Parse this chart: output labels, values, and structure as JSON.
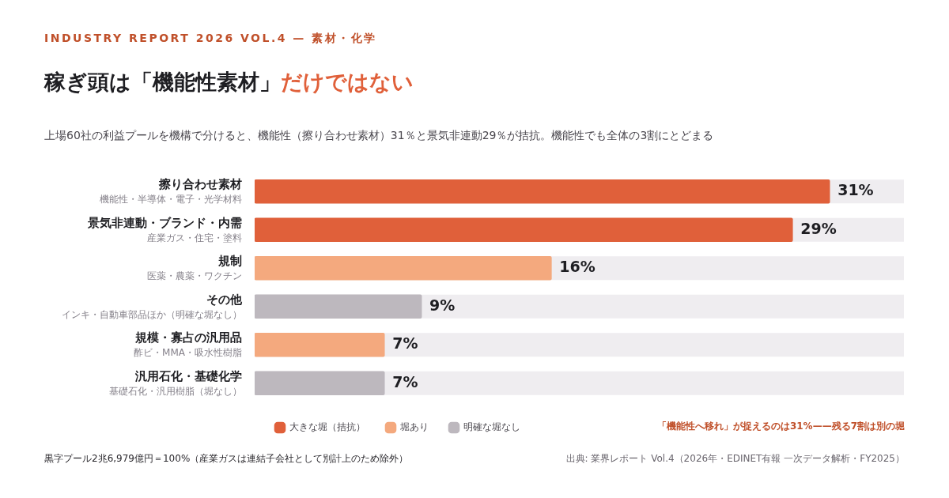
{
  "chart_data": {
    "type": "bar",
    "orientation": "horizontal",
    "stacked": true,
    "title": "稼ぎ頭は「機能性素材」だけではない",
    "subtitle": "上場60社の利益プールを機構で分けると、機能性（擦り合わせ素材）31％と景気非連動29％が拮抗。機能性でも全体の3割にとどまる",
    "categories": [
      "擦り合わせ素材",
      "景気非連動・ブランド・内需",
      "規制",
      "その他",
      "規模・寡占の汎用品",
      "汎用石化・基礎化学"
    ],
    "series": [
      {
        "name": "大きな堀（拮抗）",
        "color": "#e0603a",
        "values": [
          31,
          29,
          null,
          null,
          null,
          null
        ],
        "value_labels": [
          "31%",
          "29%",
          null,
          null,
          null,
          null
        ]
      },
      {
        "name": "堀あり",
        "color": "#f4a97e",
        "values": [
          null,
          null,
          16,
          null,
          7,
          null
        ],
        "value_labels": [
          null,
          null,
          "16%",
          null,
          "7%",
          null
        ]
      },
      {
        "name": "明確な堀なし",
        "color": "#bdb8be",
        "values": [
          null,
          null,
          null,
          9,
          null,
          7
        ],
        "value_labels": [
          null,
          null,
          null,
          "9%",
          null,
          "7%"
        ]
      }
    ],
    "xlim": [
      0,
      35
    ],
    "legend": "bottom left",
    "tick_labels": "y",
    "annotations": [
      "INDUSTRY REPORT 2026 VOL.4 — 素材・化学",
      "「機能性へ移れ」が捉えるのは31%——残る7割は別の堀",
      "黒字プール2兆6,979億円＝100%（産業ガスは連結子会社として別計上のため除外）",
      "出典: 業界レポート Vol.4（2026年・EDINET有報 一次データ解析・FY2025）",
      "機能性・半導体・電子・光学材料",
      "産業ガス・住宅・塗料",
      "医薬・農薬・ワクチン",
      "インキ・自動車部品ほか（明確な堀なし）",
      "酢ビ・MMA・吸水性樹脂",
      "基礎石化・汎用樹脂（堀なし）"
    ]
  }
}
